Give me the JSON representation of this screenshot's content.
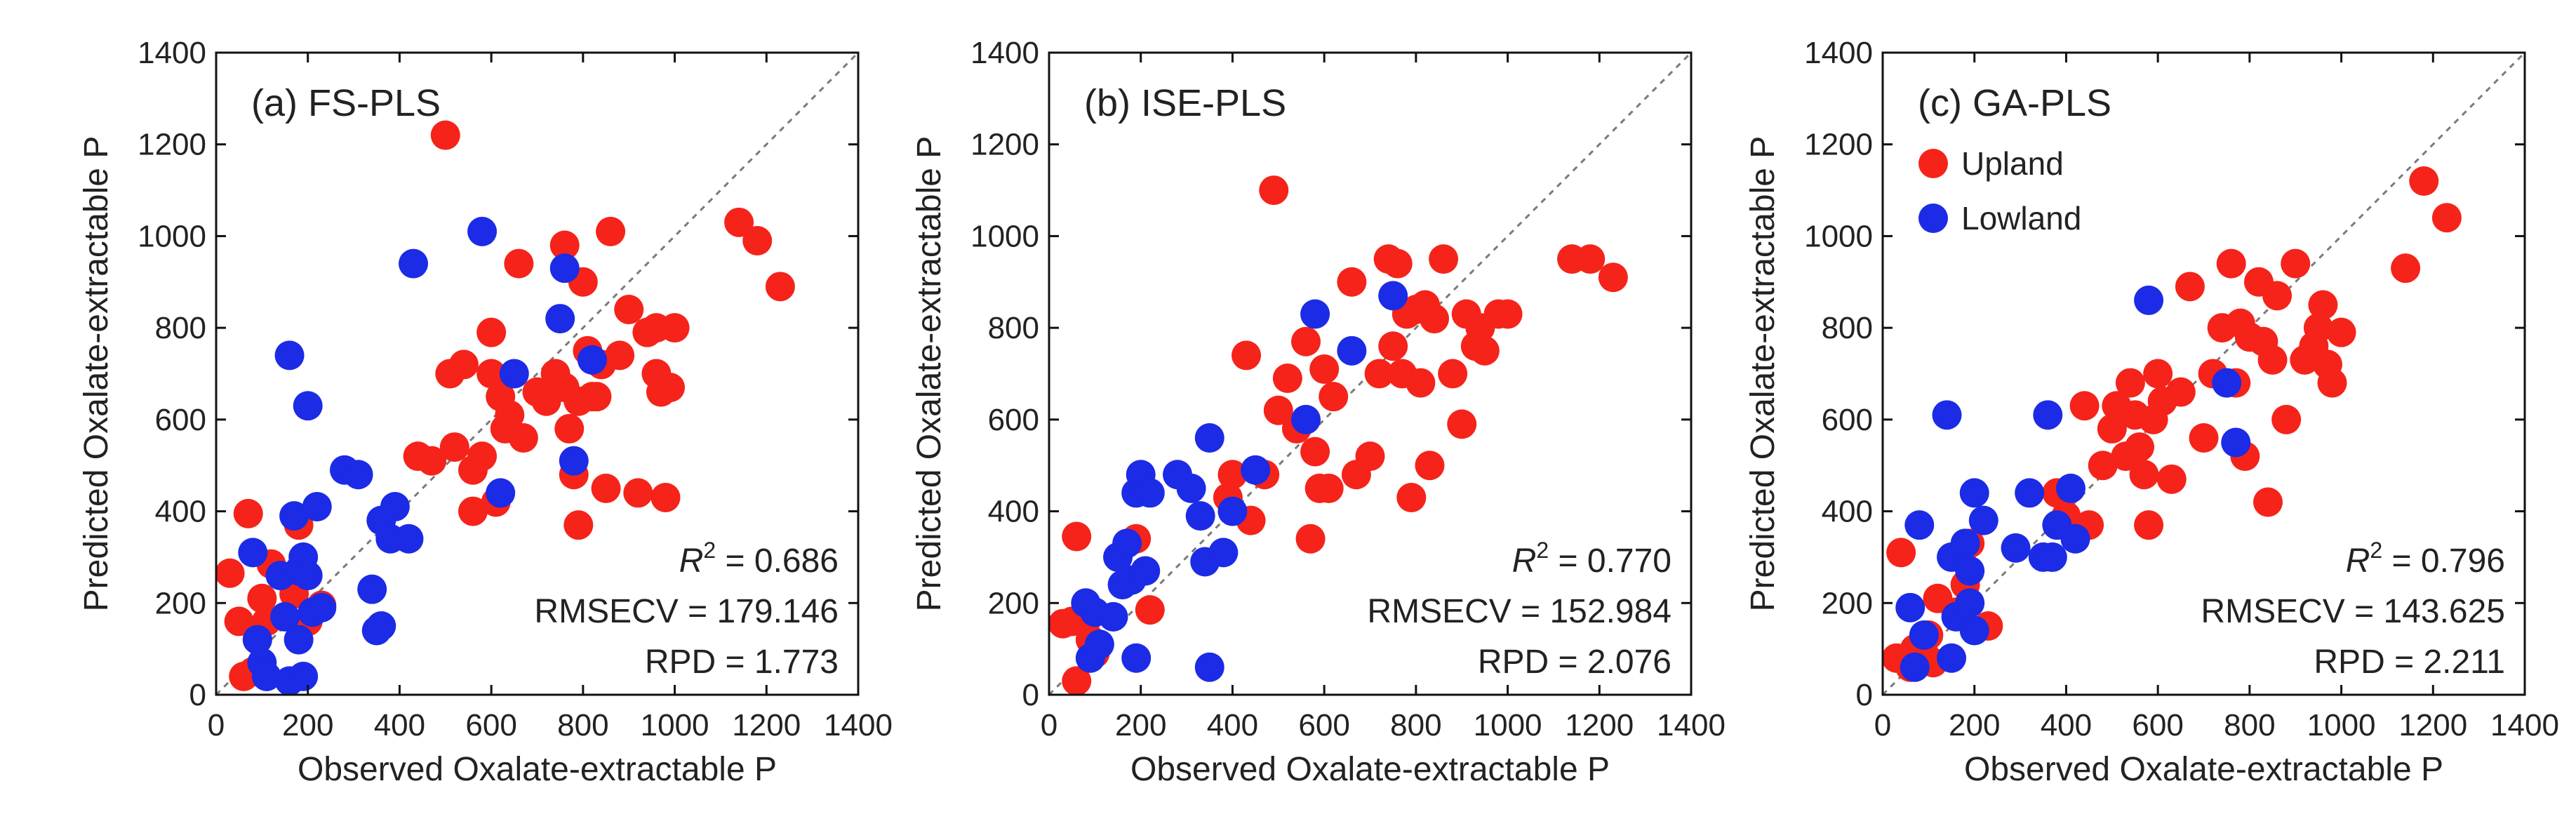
{
  "colors": {
    "upland": "#f5231a",
    "lowland": "#1b2be6",
    "one_to_one": "#7a7a7a",
    "axis": "#111111"
  },
  "chart_data": [
    {
      "type": "scatter",
      "title": "(a) FS-PLS",
      "xlabel": "Observed Oxalate-extractable P",
      "ylabel": "Predicted Oxalate-extractable P",
      "xlim": [
        0,
        1400
      ],
      "ylim": [
        0,
        1400
      ],
      "xticks": [
        "0",
        "200",
        "400",
        "600",
        "800",
        "1000",
        "1200",
        "1400"
      ],
      "yticks": [
        "0",
        "200",
        "400",
        "600",
        "800",
        "1000",
        "1200",
        "1400"
      ],
      "one_to_one_line": true,
      "stats": {
        "r2_label": "R",
        "r2_sup": "2",
        "r2_value": " = 0.686",
        "rmsecv": "RMSECV = 179.146",
        "rpd": "RPD = 1.773"
      },
      "series": [
        {
          "name": "Upland",
          "color": "upland",
          "points": [
            [
              30,
              265
            ],
            [
              50,
              160
            ],
            [
              70,
              395
            ],
            [
              60,
              40
            ],
            [
              80,
              50
            ],
            [
              100,
              210
            ],
            [
              110,
              160
            ],
            [
              120,
              285
            ],
            [
              90,
              120
            ],
            [
              180,
              370
            ],
            [
              170,
              220
            ],
            [
              200,
              160
            ],
            [
              230,
              195
            ],
            [
              440,
              520
            ],
            [
              470,
              510
            ],
            [
              500,
              1220
            ],
            [
              510,
              700
            ],
            [
              520,
              540
            ],
            [
              540,
              720
            ],
            [
              560,
              490
            ],
            [
              560,
              400
            ],
            [
              580,
              520
            ],
            [
              600,
              790
            ],
            [
              600,
              700
            ],
            [
              610,
              420
            ],
            [
              620,
              650
            ],
            [
              630,
              580
            ],
            [
              640,
              610
            ],
            [
              660,
              940
            ],
            [
              670,
              560
            ],
            [
              700,
              660
            ],
            [
              720,
              640
            ],
            [
              740,
              700
            ],
            [
              760,
              980
            ],
            [
              760,
              670
            ],
            [
              770,
              580
            ],
            [
              780,
              480
            ],
            [
              790,
              370
            ],
            [
              790,
              640
            ],
            [
              800,
              900
            ],
            [
              810,
              750
            ],
            [
              820,
              650
            ],
            [
              830,
              650
            ],
            [
              840,
              720
            ],
            [
              850,
              450
            ],
            [
              860,
              1010
            ],
            [
              880,
              740
            ],
            [
              900,
              840
            ],
            [
              920,
              440
            ],
            [
              940,
              790
            ],
            [
              960,
              800
            ],
            [
              960,
              700
            ],
            [
              970,
              660
            ],
            [
              980,
              430
            ],
            [
              990,
              670
            ],
            [
              1000,
              800
            ],
            [
              1140,
              1030
            ],
            [
              1180,
              990
            ],
            [
              1230,
              890
            ]
          ]
        },
        {
          "name": "Lowland",
          "color": "lowland",
          "points": [
            [
              80,
              310
            ],
            [
              90,
              120
            ],
            [
              100,
              70
            ],
            [
              110,
              40
            ],
            [
              140,
              260
            ],
            [
              150,
              170
            ],
            [
              160,
              740
            ],
            [
              160,
              30
            ],
            [
              170,
              390
            ],
            [
              180,
              270
            ],
            [
              180,
              120
            ],
            [
              190,
              300
            ],
            [
              190,
              40
            ],
            [
              200,
              630
            ],
            [
              200,
              260
            ],
            [
              210,
              180
            ],
            [
              220,
              410
            ],
            [
              230,
              190
            ],
            [
              280,
              490
            ],
            [
              310,
              480
            ],
            [
              340,
              230
            ],
            [
              350,
              140
            ],
            [
              360,
              150
            ],
            [
              360,
              380
            ],
            [
              380,
              340
            ],
            [
              390,
              410
            ],
            [
              420,
              340
            ],
            [
              430,
              940
            ],
            [
              580,
              1010
            ],
            [
              620,
              440
            ],
            [
              650,
              700
            ],
            [
              750,
              820
            ],
            [
              760,
              930
            ],
            [
              780,
              510
            ],
            [
              820,
              730
            ]
          ]
        }
      ]
    },
    {
      "type": "scatter",
      "title": "(b) ISE-PLS",
      "xlabel": "Observed Oxalate-extractable P",
      "ylabel": "Predicted Oxalate-extractable P",
      "xlim": [
        0,
        1400
      ],
      "ylim": [
        0,
        1400
      ],
      "xticks": [
        "0",
        "200",
        "400",
        "600",
        "800",
        "1000",
        "1200",
        "1400"
      ],
      "yticks": [
        "0",
        "200",
        "400",
        "600",
        "800",
        "1000",
        "1200",
        "1400"
      ],
      "one_to_one_line": true,
      "stats": {
        "r2_label": "R",
        "r2_sup": "2",
        "r2_value": " = 0.770",
        "rmsecv": "RMSECV = 152.984",
        "rpd": "RPD = 2.076"
      },
      "series": [
        {
          "name": "Upland",
          "color": "upland",
          "points": [
            [
              30,
              155
            ],
            [
              50,
              160
            ],
            [
              60,
              345
            ],
            [
              60,
              30
            ],
            [
              80,
              160
            ],
            [
              90,
              120
            ],
            [
              100,
              90
            ],
            [
              190,
              340
            ],
            [
              220,
              185
            ],
            [
              390,
              430
            ],
            [
              400,
              480
            ],
            [
              430,
              740
            ],
            [
              440,
              380
            ],
            [
              470,
              480
            ],
            [
              490,
              1100
            ],
            [
              500,
              620
            ],
            [
              520,
              690
            ],
            [
              540,
              580
            ],
            [
              560,
              770
            ],
            [
              570,
              340
            ],
            [
              580,
              530
            ],
            [
              590,
              450
            ],
            [
              600,
              710
            ],
            [
              610,
              450
            ],
            [
              620,
              650
            ],
            [
              660,
              900
            ],
            [
              670,
              480
            ],
            [
              700,
              520
            ],
            [
              720,
              700
            ],
            [
              740,
              950
            ],
            [
              750,
              760
            ],
            [
              760,
              940
            ],
            [
              770,
              700
            ],
            [
              780,
              830
            ],
            [
              790,
              430
            ],
            [
              800,
              840
            ],
            [
              810,
              680
            ],
            [
              820,
              850
            ],
            [
              830,
              500
            ],
            [
              840,
              820
            ],
            [
              860,
              950
            ],
            [
              880,
              700
            ],
            [
              900,
              590
            ],
            [
              910,
              830
            ],
            [
              930,
              760
            ],
            [
              940,
              800
            ],
            [
              950,
              750
            ],
            [
              980,
              830
            ],
            [
              1000,
              830
            ],
            [
              1140,
              950
            ],
            [
              1180,
              950
            ],
            [
              1230,
              910
            ]
          ]
        },
        {
          "name": "Lowland",
          "color": "lowland",
          "points": [
            [
              80,
              200
            ],
            [
              90,
              80
            ],
            [
              100,
              180
            ],
            [
              110,
              110
            ],
            [
              140,
              170
            ],
            [
              150,
              300
            ],
            [
              160,
              240
            ],
            [
              170,
              330
            ],
            [
              180,
              250
            ],
            [
              190,
              440
            ],
            [
              190,
              80
            ],
            [
              200,
              480
            ],
            [
              210,
              270
            ],
            [
              220,
              440
            ],
            [
              280,
              480
            ],
            [
              310,
              450
            ],
            [
              330,
              390
            ],
            [
              340,
              290
            ],
            [
              350,
              60
            ],
            [
              350,
              560
            ],
            [
              380,
              310
            ],
            [
              400,
              400
            ],
            [
              450,
              490
            ],
            [
              560,
              600
            ],
            [
              580,
              830
            ],
            [
              660,
              750
            ],
            [
              750,
              870
            ]
          ]
        }
      ]
    },
    {
      "type": "scatter",
      "title": "(c) GA-PLS",
      "xlabel": "Observed Oxalate-extractable P",
      "ylabel": "Predicted Oxalate-extractable P",
      "xlim": [
        0,
        1400
      ],
      "ylim": [
        0,
        1400
      ],
      "xticks": [
        "0",
        "200",
        "400",
        "600",
        "800",
        "1000",
        "1200",
        "1400"
      ],
      "yticks": [
        "0",
        "200",
        "400",
        "600",
        "800",
        "1000",
        "1200",
        "1400"
      ],
      "one_to_one_line": true,
      "legend": {
        "position": "top-left"
      },
      "stats": {
        "r2_label": "R",
        "r2_sup": "2",
        "r2_value": " = 0.796",
        "rmsecv": "RMSECV = 143.625",
        "rpd": "RPD = 2.211"
      },
      "series": [
        {
          "name": "Upland",
          "color": "upland",
          "points": [
            [
              30,
              80
            ],
            [
              40,
              310
            ],
            [
              60,
              60
            ],
            [
              70,
              100
            ],
            [
              90,
              90
            ],
            [
              100,
              130
            ],
            [
              110,
              70
            ],
            [
              120,
              210
            ],
            [
              160,
              180
            ],
            [
              180,
              240
            ],
            [
              190,
              330
            ],
            [
              230,
              150
            ],
            [
              380,
              440
            ],
            [
              400,
              390
            ],
            [
              440,
              630
            ],
            [
              450,
              370
            ],
            [
              480,
              500
            ],
            [
              500,
              580
            ],
            [
              510,
              630
            ],
            [
              530,
              520
            ],
            [
              540,
              680
            ],
            [
              550,
              610
            ],
            [
              560,
              540
            ],
            [
              570,
              480
            ],
            [
              580,
              370
            ],
            [
              590,
              600
            ],
            [
              600,
              700
            ],
            [
              610,
              640
            ],
            [
              630,
              470
            ],
            [
              650,
              660
            ],
            [
              670,
              890
            ],
            [
              700,
              560
            ],
            [
              720,
              700
            ],
            [
              740,
              800
            ],
            [
              760,
              940
            ],
            [
              770,
              680
            ],
            [
              780,
              810
            ],
            [
              790,
              520
            ],
            [
              800,
              780
            ],
            [
              820,
              900
            ],
            [
              830,
              770
            ],
            [
              840,
              420
            ],
            [
              850,
              730
            ],
            [
              860,
              870
            ],
            [
              880,
              600
            ],
            [
              900,
              940
            ],
            [
              920,
              730
            ],
            [
              940,
              760
            ],
            [
              950,
              800
            ],
            [
              960,
              850
            ],
            [
              970,
              720
            ],
            [
              980,
              680
            ],
            [
              1000,
              790
            ],
            [
              1140,
              930
            ],
            [
              1180,
              1120
            ],
            [
              1230,
              1040
            ]
          ]
        },
        {
          "name": "Lowland",
          "color": "lowland",
          "points": [
            [
              60,
              190
            ],
            [
              70,
              60
            ],
            [
              80,
              370
            ],
            [
              90,
              130
            ],
            [
              140,
              610
            ],
            [
              150,
              300
            ],
            [
              150,
              80
            ],
            [
              160,
              170
            ],
            [
              180,
              330
            ],
            [
              190,
              200
            ],
            [
              190,
              270
            ],
            [
              200,
              440
            ],
            [
              200,
              140
            ],
            [
              220,
              380
            ],
            [
              290,
              320
            ],
            [
              320,
              440
            ],
            [
              350,
              300
            ],
            [
              360,
              610
            ],
            [
              370,
              300
            ],
            [
              380,
              370
            ],
            [
              410,
              450
            ],
            [
              420,
              340
            ],
            [
              580,
              860
            ],
            [
              750,
              680
            ],
            [
              770,
              550
            ]
          ]
        }
      ]
    }
  ]
}
